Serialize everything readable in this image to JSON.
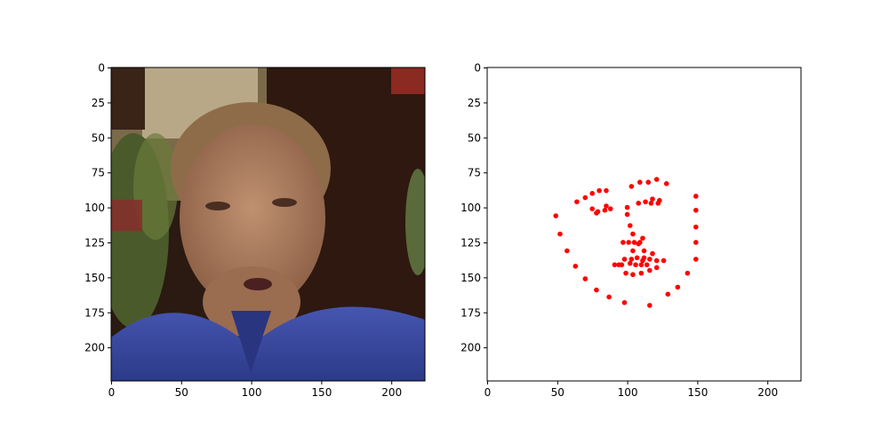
{
  "chart_data": [
    {
      "type": "image",
      "image_description_icon": "face-photo",
      "colors": {
        "background_wall": "#3a2418",
        "shirt": "#3a4aa0",
        "skin": "#a77a5e",
        "hair": "#8a6a48",
        "plant": "#4a5a2a"
      },
      "xlim": [
        0,
        224
      ],
      "ylim": [
        224,
        0
      ],
      "xticks": [
        0,
        50,
        100,
        150,
        200
      ],
      "yticks": [
        0,
        25,
        50,
        75,
        100,
        125,
        150,
        175,
        200
      ],
      "xtick_labels": [
        "0",
        "50",
        "100",
        "150",
        "200"
      ],
      "ytick_labels": [
        "0",
        "25",
        "50",
        "75",
        "100",
        "125",
        "150",
        "175",
        "200"
      ]
    },
    {
      "type": "scatter",
      "marker_color": "#ff0000",
      "xlim": [
        0,
        224
      ],
      "ylim": [
        224,
        0
      ],
      "xticks": [
        0,
        50,
        100,
        150,
        200
      ],
      "yticks": [
        0,
        25,
        50,
        75,
        100,
        125,
        150,
        175,
        200
      ],
      "xtick_labels": [
        "0",
        "50",
        "100",
        "150",
        "200"
      ],
      "ytick_labels": [
        "0",
        "25",
        "50",
        "75",
        "100",
        "125",
        "150",
        "175",
        "200"
      ],
      "points": [
        [
          49,
          106
        ],
        [
          52,
          119
        ],
        [
          57,
          131
        ],
        [
          63,
          142
        ],
        [
          70,
          151
        ],
        [
          78,
          159
        ],
        [
          87,
          164
        ],
        [
          98,
          168
        ],
        [
          116,
          170
        ],
        [
          129,
          162
        ],
        [
          136,
          157
        ],
        [
          143,
          147
        ],
        [
          149,
          137
        ],
        [
          149,
          125
        ],
        [
          149,
          114
        ],
        [
          149,
          102
        ],
        [
          149,
          92
        ],
        [
          64,
          96
        ],
        [
          70,
          93
        ],
        [
          75,
          90
        ],
        [
          80,
          88
        ],
        [
          85,
          88
        ],
        [
          103,
          85
        ],
        [
          109,
          82
        ],
        [
          115,
          82
        ],
        [
          121,
          80
        ],
        [
          128,
          83
        ],
        [
          75,
          101
        ],
        [
          79,
          103
        ],
        [
          84,
          102
        ],
        [
          88,
          101
        ],
        [
          85,
          99
        ],
        [
          78,
          104
        ],
        [
          108,
          97
        ],
        [
          113,
          96
        ],
        [
          118,
          94
        ],
        [
          123,
          95
        ],
        [
          117,
          97
        ],
        [
          122,
          97
        ],
        [
          100,
          100
        ],
        [
          100,
          105
        ],
        [
          102,
          113
        ],
        [
          104,
          119
        ],
        [
          97,
          125
        ],
        [
          101,
          125
        ],
        [
          105,
          125
        ],
        [
          109,
          125
        ],
        [
          111,
          122
        ],
        [
          94,
          141
        ],
        [
          98,
          137
        ],
        [
          103,
          137
        ],
        [
          107,
          136
        ],
        [
          112,
          136
        ],
        [
          116,
          137
        ],
        [
          121,
          138
        ],
        [
          126,
          138
        ],
        [
          121,
          143
        ],
        [
          116,
          145
        ],
        [
          110,
          147
        ],
        [
          104,
          148
        ],
        [
          99,
          147
        ],
        [
          106,
          141
        ],
        [
          110,
          141
        ],
        [
          114,
          141
        ],
        [
          112,
          131
        ],
        [
          104,
          131
        ],
        [
          91,
          141
        ],
        [
          96,
          141
        ],
        [
          108,
          126
        ],
        [
          102,
          140
        ],
        [
          118,
          133
        ],
        [
          111,
          138
        ]
      ]
    }
  ]
}
